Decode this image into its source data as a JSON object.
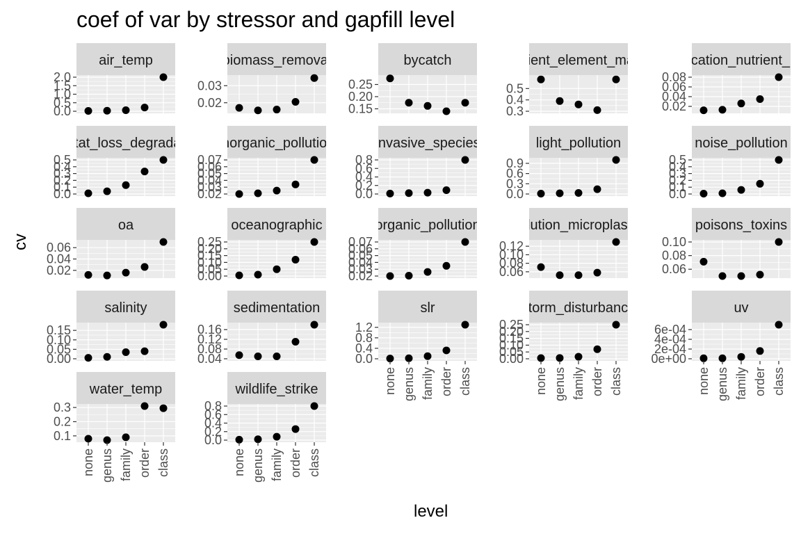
{
  "chart_data": {
    "type": "scatter",
    "title": "coef of var by stressor and gapfill level",
    "xlabel": "level",
    "ylabel": "cv",
    "categories": [
      "none",
      "genus",
      "family",
      "order",
      "class"
    ],
    "panels": [
      {
        "name": "air_temp",
        "ylim": [
          0.0,
          2.0
        ],
        "yticks": [
          "0.0",
          "0.5",
          "1.0",
          "1.5",
          "2.0"
        ],
        "tickvals": [
          0,
          0.5,
          1.0,
          1.5,
          2.0
        ],
        "values": [
          0.02,
          0.03,
          0.06,
          0.22,
          2.0
        ]
      },
      {
        "name": "biomass_removal",
        "ylim": [
          0.015,
          0.035
        ],
        "yticks": [
          "0.02",
          "0.03"
        ],
        "tickvals": [
          0.02,
          0.03
        ],
        "values": [
          0.017,
          0.0155,
          0.016,
          0.0205,
          0.0345
        ]
      },
      {
        "name": "bycatch",
        "ylim": [
          0.14,
          0.28
        ],
        "yticks": [
          "0.15",
          "0.20",
          "0.25"
        ],
        "tickvals": [
          0.15,
          0.2,
          0.25
        ],
        "values": [
          0.275,
          0.175,
          0.162,
          0.14,
          0.175
        ]
      },
      {
        "name": "nutrient_element_macro",
        "ylim": [
          0.3,
          0.6
        ],
        "yticks": [
          "0.3",
          "0.4",
          "0.5"
        ],
        "tickvals": [
          0.3,
          0.4,
          0.5
        ],
        "values": [
          0.58,
          0.39,
          0.36,
          0.31,
          0.58
        ]
      },
      {
        "name": "eutrophication_nutrient_pollution",
        "ylim": [
          0.01,
          0.08
        ],
        "yticks": [
          "0.02",
          "0.04",
          "0.06",
          "0.08"
        ],
        "tickvals": [
          0.02,
          0.04,
          0.06,
          0.08
        ],
        "values": [
          0.012,
          0.013,
          0.026,
          0.035,
          0.08
        ]
      },
      {
        "name": "habitat_loss_degradation",
        "ylim": [
          0.0,
          0.5
        ],
        "yticks": [
          "0.0",
          "0.1",
          "0.2",
          "0.3",
          "0.4",
          "0.5"
        ],
        "tickvals": [
          0,
          0.1,
          0.2,
          0.3,
          0.4,
          0.5
        ],
        "values": [
          0.01,
          0.04,
          0.13,
          0.33,
          0.5
        ]
      },
      {
        "name": "inorganic_pollution",
        "ylim": [
          0.02,
          0.07
        ],
        "yticks": [
          "0.02",
          "0.03",
          "0.04",
          "0.05",
          "0.06",
          "0.07"
        ],
        "tickvals": [
          0.02,
          0.03,
          0.04,
          0.05,
          0.06,
          0.07
        ],
        "values": [
          0.02,
          0.021,
          0.025,
          0.034,
          0.07
        ]
      },
      {
        "name": "invasive_species",
        "ylim": [
          0.0,
          0.8
        ],
        "yticks": [
          "0.0",
          "0.2",
          "0.4",
          "0.6",
          "0.8"
        ],
        "tickvals": [
          0,
          0.2,
          0.4,
          0.6,
          0.8
        ],
        "values": [
          0.01,
          0.02,
          0.03,
          0.09,
          0.8
        ]
      },
      {
        "name": "light_pollution",
        "ylim": [
          0.0,
          1.0
        ],
        "yticks": [
          "0.0",
          "0.3",
          "0.6",
          "0.9"
        ],
        "tickvals": [
          0,
          0.3,
          0.6,
          0.9
        ],
        "values": [
          0.01,
          0.02,
          0.03,
          0.14,
          1.0
        ]
      },
      {
        "name": "noise_pollution",
        "ylim": [
          0.0,
          0.5
        ],
        "yticks": [
          "0.0",
          "0.1",
          "0.2",
          "0.3",
          "0.4",
          "0.5"
        ],
        "tickvals": [
          0,
          0.1,
          0.2,
          0.3,
          0.4,
          0.5
        ],
        "values": [
          0.005,
          0.01,
          0.06,
          0.15,
          0.5
        ]
      },
      {
        "name": "oa",
        "ylim": [
          0.01,
          0.07
        ],
        "yticks": [
          "0.02",
          "0.04",
          "0.06"
        ],
        "tickvals": [
          0.02,
          0.04,
          0.06
        ],
        "values": [
          0.012,
          0.011,
          0.016,
          0.026,
          0.07
        ]
      },
      {
        "name": "oceanographic",
        "ylim": [
          0.0,
          0.25
        ],
        "yticks": [
          "0.00",
          "0.05",
          "0.10",
          "0.15",
          "0.20",
          "0.25"
        ],
        "tickvals": [
          0,
          0.05,
          0.1,
          0.15,
          0.2,
          0.25
        ],
        "values": [
          0.005,
          0.01,
          0.05,
          0.12,
          0.25
        ]
      },
      {
        "name": "organic_pollution",
        "ylim": [
          0.02,
          0.07
        ],
        "yticks": [
          "0.02",
          "0.03",
          "0.04",
          "0.05",
          "0.06",
          "0.07"
        ],
        "tickvals": [
          0.02,
          0.03,
          0.04,
          0.05,
          0.06,
          0.07
        ],
        "values": [
          0.02,
          0.0205,
          0.026,
          0.035,
          0.07
        ]
      },
      {
        "name": "pollution_microplastics",
        "ylim": [
          0.05,
          0.13
        ],
        "yticks": [
          "0.06",
          "0.08",
          "0.10",
          "0.12"
        ],
        "tickvals": [
          0.06,
          0.08,
          0.1,
          0.12
        ],
        "values": [
          0.071,
          0.052,
          0.052,
          0.058,
          0.13
        ]
      },
      {
        "name": "poisons_toxins",
        "ylim": [
          0.05,
          0.1
        ],
        "yticks": [
          "0.06",
          "0.08",
          "0.10"
        ],
        "tickvals": [
          0.06,
          0.08,
          0.1
        ],
        "values": [
          0.071,
          0.05,
          0.05,
          0.052,
          0.1
        ]
      },
      {
        "name": "salinity",
        "ylim": [
          0.0,
          0.18
        ],
        "yticks": [
          "0.00",
          "0.05",
          "0.10",
          "0.15"
        ],
        "tickvals": [
          0,
          0.05,
          0.1,
          0.15
        ],
        "values": [
          0.005,
          0.01,
          0.035,
          0.04,
          0.18
        ]
      },
      {
        "name": "sedimentation",
        "ylim": [
          0.04,
          0.18
        ],
        "yticks": [
          "0.04",
          "0.08",
          "0.12",
          "0.16"
        ],
        "tickvals": [
          0.04,
          0.08,
          0.12,
          0.16
        ],
        "values": [
          0.055,
          0.05,
          0.05,
          0.11,
          0.18
        ]
      },
      {
        "name": "slr",
        "ylim": [
          0.0,
          1.3
        ],
        "yticks": [
          "0.0",
          "0.4",
          "0.8",
          "1.2"
        ],
        "tickvals": [
          0,
          0.4,
          0.8,
          1.2
        ],
        "values": [
          0.01,
          0.02,
          0.1,
          0.32,
          1.3
        ]
      },
      {
        "name": "storm_disturbance",
        "ylim": [
          0.0,
          0.25
        ],
        "yticks": [
          "0.00",
          "0.05",
          "0.10",
          "0.15",
          "0.20",
          "0.25"
        ],
        "tickvals": [
          0,
          0.05,
          0.1,
          0.15,
          0.2,
          0.25
        ],
        "values": [
          0.005,
          0.006,
          0.015,
          0.07,
          0.25
        ]
      },
      {
        "name": "uv",
        "ylim": [
          0.0,
          0.0007
        ],
        "yticks": [
          "0e+00",
          "2e-04",
          "4e-04",
          "6e-04"
        ],
        "tickvals": [
          0,
          0.0002,
          0.0004,
          0.0006
        ],
        "values": [
          1e-05,
          1e-05,
          4e-05,
          0.00016,
          0.0007
        ]
      },
      {
        "name": "water_temp",
        "ylim": [
          0.07,
          0.31
        ],
        "yticks": [
          "0.1",
          "0.2",
          "0.3"
        ],
        "tickvals": [
          0.1,
          0.2,
          0.3
        ],
        "values": [
          0.08,
          0.07,
          0.09,
          0.31,
          0.295
        ]
      },
      {
        "name": "wildlife_strike",
        "ylim": [
          0.0,
          0.8
        ],
        "yticks": [
          "0.0",
          "0.2",
          "0.4",
          "0.6",
          "0.8"
        ],
        "tickvals": [
          0,
          0.2,
          0.4,
          0.6,
          0.8
        ],
        "values": [
          0.01,
          0.02,
          0.08,
          0.26,
          0.8
        ]
      }
    ],
    "grid": true,
    "legend": "none"
  },
  "colors": {
    "panel_background": "#ebebeb",
    "strip_background": "#d9d9d9",
    "gridline": "#ffffff",
    "point": "#000000",
    "tick_text": "#4d4d4d",
    "strip_text": "#1a1a1a"
  }
}
